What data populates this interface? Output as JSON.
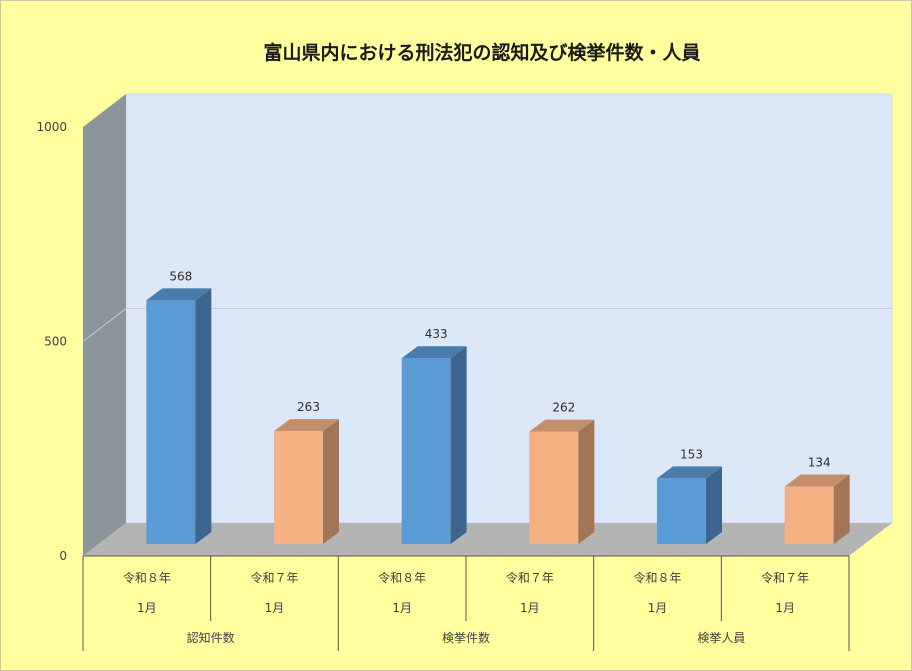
{
  "chart_data": {
    "type": "bar",
    "title": "富山県内における刑法犯の認知及び検挙件数・人員",
    "xlabel": "",
    "ylabel": "",
    "ylim": [
      0,
      1000
    ],
    "yticks": [
      "0",
      "500",
      "1000"
    ],
    "legend": "none",
    "grid": true,
    "categories": [
      {
        "group": "認知件数",
        "series_label": "令和８年",
        "period": "1月",
        "value": 568,
        "value_label": "568",
        "color": "#5b9bd5"
      },
      {
        "group": "認知件数",
        "series_label": "令和７年",
        "period": "1月",
        "value": 263,
        "value_label": "263",
        "color": "#f4b183"
      },
      {
        "group": "検挙件数",
        "series_label": "令和８年",
        "period": "1月",
        "value": 433,
        "value_label": "433",
        "color": "#5b9bd5"
      },
      {
        "group": "検挙件数",
        "series_label": "令和７年",
        "period": "1月",
        "value": 262,
        "value_label": "262",
        "color": "#f4b183"
      },
      {
        "group": "検挙人員",
        "series_label": "令和８年",
        "period": "1月",
        "value": 153,
        "value_label": "153",
        "color": "#5b9bd5"
      },
      {
        "group": "検挙人員",
        "series_label": "令和７年",
        "period": "1月",
        "value": 134,
        "value_label": "134",
        "color": "#f4b183"
      }
    ],
    "groups": [
      "認知件数",
      "検挙件数",
      "検挙人員"
    ],
    "colors": {
      "background": "#ffff9f",
      "back_wall": "#dce8f7",
      "side_wall": "#8c949c",
      "floor": "#b4b4b4",
      "series_r8": "#5b9bd5",
      "series_r7": "#f4b183"
    }
  }
}
